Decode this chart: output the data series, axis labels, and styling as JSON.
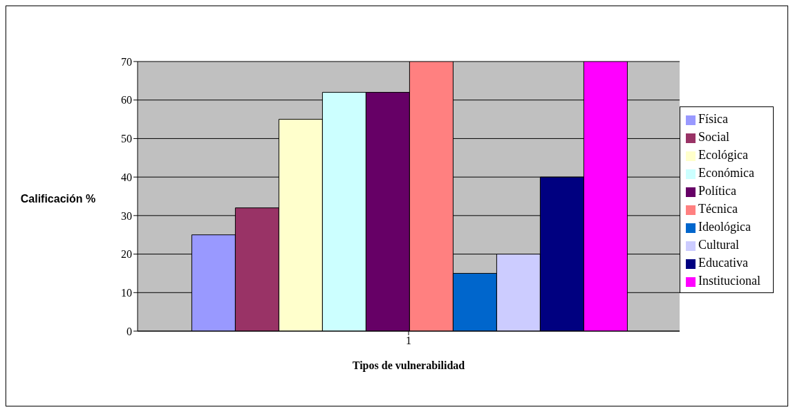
{
  "chart_data": {
    "type": "bar",
    "xlabel": "Tipos de vulnerabilidad",
    "ylabel": "Calificación %",
    "categories": [
      "1"
    ],
    "series": [
      {
        "name": "Física",
        "color": "#9999ff",
        "values": [
          25
        ]
      },
      {
        "name": "Social",
        "color": "#993366",
        "values": [
          32
        ]
      },
      {
        "name": "Ecológica",
        "color": "#ffffcc",
        "values": [
          55
        ]
      },
      {
        "name": "Económica",
        "color": "#ccffff",
        "values": [
          62
        ]
      },
      {
        "name": "Política",
        "color": "#660066",
        "values": [
          62
        ]
      },
      {
        "name": "Técnica",
        "color": "#ff8080",
        "values": [
          70
        ]
      },
      {
        "name": "Ideológica",
        "color": "#0066cc",
        "values": [
          15
        ]
      },
      {
        "name": "Cultural",
        "color": "#ccccff",
        "values": [
          20
        ]
      },
      {
        "name": "Educativa",
        "color": "#000080",
        "values": [
          40
        ]
      },
      {
        "name": "Institucional",
        "color": "#ff00ff",
        "values": [
          70
        ]
      }
    ],
    "ylim": [
      0,
      70
    ],
    "yticks": [
      0,
      10,
      20,
      30,
      40,
      50,
      60,
      70
    ],
    "grid": "y",
    "legend": "right"
  }
}
